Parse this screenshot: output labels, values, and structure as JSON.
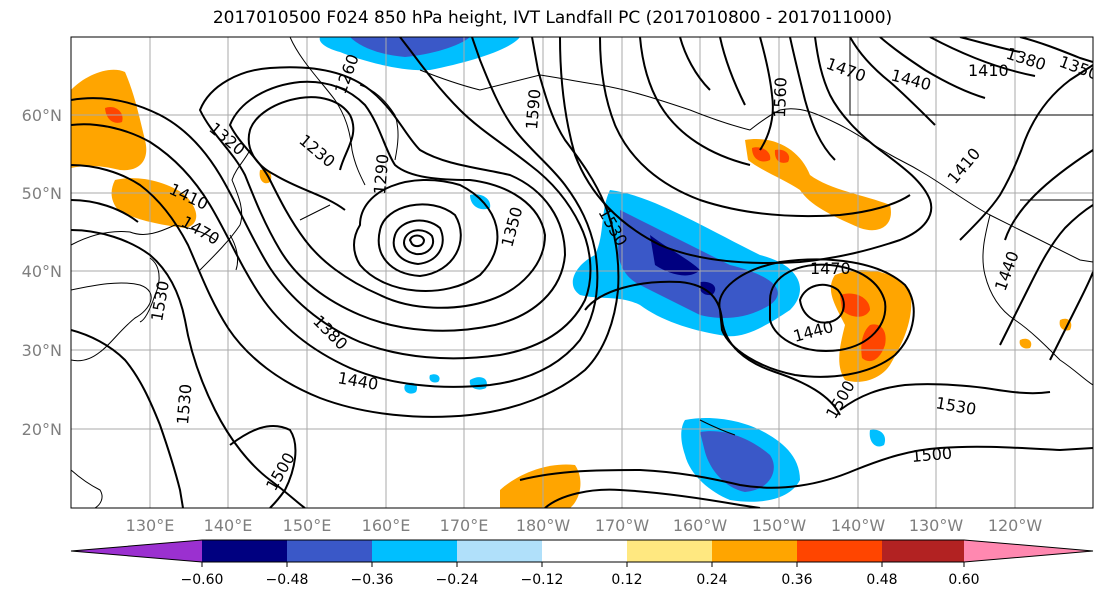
{
  "title": "2017010500 F024 850 hPa height, IVT Landfall PC (2017010800 - 2017011000)",
  "lat_labels": [
    "60°N",
    "50°N",
    "40°N",
    "30°N",
    "20°N"
  ],
  "lon_labels": [
    "130°E",
    "140°E",
    "150°E",
    "160°E",
    "170°E",
    "180°W",
    "170°W",
    "160°W",
    "150°W",
    "140°W",
    "130°W",
    "120°W"
  ],
  "contour_labels": [
    "1260",
    "1230",
    "1290",
    "1320",
    "1350",
    "1410",
    "1470",
    "1380",
    "1440",
    "1530",
    "1590",
    "1530",
    "1560",
    "1470",
    "1440",
    "1410",
    "1380",
    "1350",
    "1470",
    "1440",
    "1500",
    "1530",
    "1500",
    "1500",
    "1530",
    "1410",
    "1440"
  ],
  "colorbar": {
    "ticks": [
      "−0.60",
      "−0.48",
      "−0.36",
      "−0.24",
      "−0.12",
      "0.12",
      "0.24",
      "0.36",
      "0.48",
      "0.60"
    ],
    "colors": [
      "#9b30d0",
      "#000080",
      "#3a58c8",
      "#00bfff",
      "#b0e0fa",
      "#ffffff",
      "#ffe880",
      "#ffa500",
      "#ff4500",
      "#b22222",
      "#ff88b0"
    ]
  }
}
